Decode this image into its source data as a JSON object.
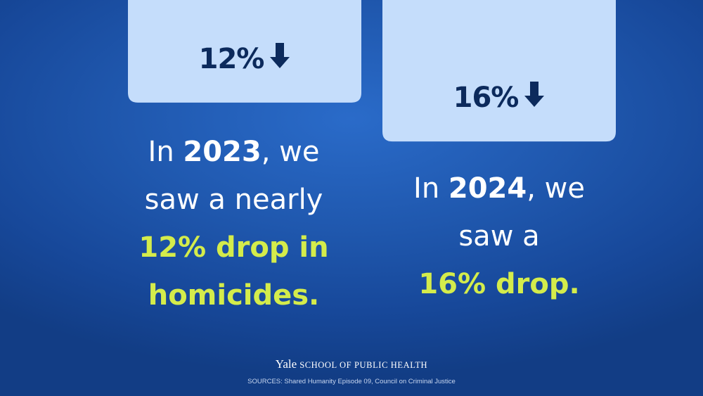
{
  "chart_data": {
    "type": "bar",
    "categories": [
      "2023",
      "2024"
    ],
    "values": [
      12,
      16
    ],
    "value_labels": [
      "12%",
      "16%"
    ],
    "title": "",
    "xlabel": "",
    "ylabel": "",
    "ylim": [
      0,
      16.5
    ],
    "orientation": "hanging-down",
    "bar_color": "#c5ddfb",
    "highlight_color": "#d4ec4b"
  },
  "captions": [
    {
      "pre": "In ",
      "year": "2023",
      "post": ", we",
      "line2": "saw a nearly",
      "hl1": "12% drop in",
      "hl2": "homicides."
    },
    {
      "pre": "In ",
      "year": "2024",
      "post": ", we",
      "line2": "saw a",
      "hl1": "16% drop.",
      "hl2": ""
    }
  ],
  "footer": {
    "brand_yale": "Yale",
    "brand_school": "SCHOOL OF PUBLIC HEALTH",
    "sources": "SOURCES: Shared Humanity Episode 09, Council on Criminal Justice"
  },
  "icons": {
    "value_arrow": "down-arrow-icon"
  }
}
